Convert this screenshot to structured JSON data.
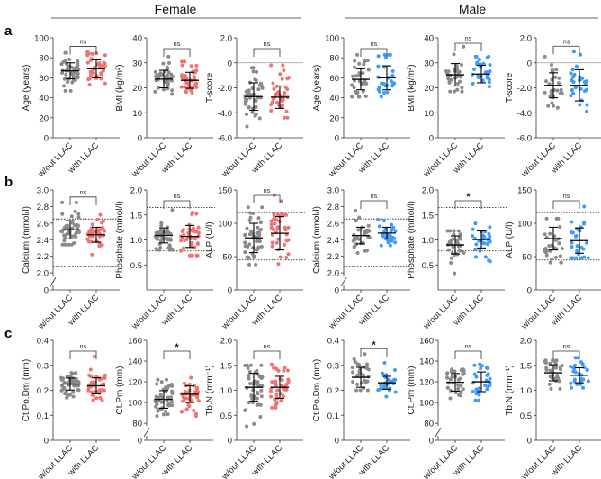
{
  "headers": {
    "female": "Female",
    "male": "Male"
  },
  "rows": [
    "a",
    "b",
    "c"
  ],
  "colors": {
    "without": "#8a8a8a",
    "female_with": "#f07272",
    "male_with": "#3d9bff"
  },
  "chart_data": [
    {
      "type": "scatter",
      "row": "a",
      "sex": "Female",
      "ylabel": "Age (years)",
      "ylim": [
        0,
        100
      ],
      "ticks": [
        0,
        20,
        40,
        60,
        80,
        100
      ],
      "sig": "ns",
      "categories": [
        "w/out LLAC",
        "with LLAC"
      ],
      "groups": [
        {
          "mean": 67,
          "sd": 8,
          "n": 45,
          "min": 47,
          "max": 85
        },
        {
          "mean": 69,
          "sd": 9,
          "n": 40,
          "min": 53,
          "max": 86
        }
      ]
    },
    {
      "type": "scatter",
      "row": "a",
      "sex": "Female",
      "ylabel": "BMI (kg/m²)",
      "ylim": [
        0,
        40
      ],
      "ticks": [
        0,
        10,
        20,
        30,
        40
      ],
      "sig": "ns",
      "categories": [
        "w/out LLAC",
        "with LLAC"
      ],
      "groups": [
        {
          "mean": 23.5,
          "sd": 3.5,
          "n": 45,
          "min": 17.5,
          "max": 32.5
        },
        {
          "mean": 23,
          "sd": 3.2,
          "n": 40,
          "min": 18,
          "max": 30.5
        }
      ]
    },
    {
      "type": "scatter",
      "row": "a",
      "sex": "Female",
      "ylabel": "T-score",
      "ylim": [
        -6,
        2
      ],
      "ticks": [
        -6,
        -4,
        -2,
        0,
        2
      ],
      "zero_line": 0,
      "sig": "ns",
      "categories": [
        "w/out LLAC",
        "with LLAC"
      ],
      "groups": [
        {
          "mean": -2.7,
          "sd": 1.1,
          "n": 45,
          "min": -5.1,
          "max": -0.4
        },
        {
          "mean": -2.75,
          "sd": 0.9,
          "n": 40,
          "min": -4.4,
          "max": -0.2
        }
      ]
    },
    {
      "type": "scatter",
      "row": "a",
      "sex": "Male",
      "ylabel": "Age (years)",
      "ylim": [
        0,
        100
      ],
      "ticks": [
        0,
        20,
        40,
        60,
        80,
        100
      ],
      "sig": "ns",
      "categories": [
        "w/out LLAC",
        "with LLAC"
      ],
      "groups": [
        {
          "mean": 58.5,
          "sd": 10.5,
          "n": 30,
          "min": 41,
          "max": 83
        },
        {
          "mean": 60,
          "sd": 12,
          "n": 28,
          "min": 41,
          "max": 83
        }
      ]
    },
    {
      "type": "scatter",
      "row": "a",
      "sex": "Male",
      "ylabel": "BMI (kg/m²)",
      "ylim": [
        0,
        40
      ],
      "ticks": [
        0,
        10,
        20,
        30,
        40
      ],
      "sig": "ns",
      "categories": [
        "w/out LLAC",
        "with LLAC"
      ],
      "groups": [
        {
          "mean": 25.2,
          "sd": 4.5,
          "n": 30,
          "min": 18.5,
          "max": 36.5
        },
        {
          "mean": 25.5,
          "sd": 3.5,
          "n": 28,
          "min": 20.5,
          "max": 32.5
        }
      ]
    },
    {
      "type": "scatter",
      "row": "a",
      "sex": "Male",
      "ylabel": "T-score",
      "ylim": [
        -6,
        2
      ],
      "ticks": [
        -6,
        -4,
        -2,
        0,
        2
      ],
      "zero_line": 0,
      "sig": "ns",
      "categories": [
        "w/out LLAC",
        "with LLAC"
      ],
      "groups": [
        {
          "mean": -1.8,
          "sd": 1.0,
          "n": 30,
          "min": -3.6,
          "max": 0.5
        },
        {
          "mean": -1.8,
          "sd": 1.25,
          "n": 28,
          "min": -3.9,
          "max": 0.9
        }
      ]
    },
    {
      "type": "scatter",
      "row": "b",
      "sex": "Female",
      "ylabel": "Calcium (mmol/l)",
      "ylim": [
        2.0,
        3.0
      ],
      "axis_break": true,
      "ticks": [
        0,
        2.0,
        2.2,
        2.4,
        2.6,
        2.8,
        3.0
      ],
      "ref_lines": [
        2.08,
        2.65
      ],
      "sig": "ns",
      "categories": [
        "w/out LLAC",
        "with LLAC"
      ],
      "groups": [
        {
          "mean": 2.52,
          "sd": 0.11,
          "n": 45,
          "min": 2.34,
          "max": 2.85
        },
        {
          "mean": 2.46,
          "sd": 0.09,
          "n": 40,
          "min": 2.22,
          "max": 2.7
        }
      ]
    },
    {
      "type": "scatter",
      "row": "b",
      "sex": "Female",
      "ylabel": "Phosphate  (mmol/l)",
      "ylim": [
        0,
        2.0
      ],
      "ticks": [
        0.5,
        1.0,
        1.5,
        2.0
      ],
      "ref_lines": [
        0.78,
        1.65
      ],
      "sig": "ns",
      "categories": [
        "w/out LLAC",
        "with LLAC"
      ],
      "groups": [
        {
          "mean": 1.09,
          "sd": 0.15,
          "n": 45,
          "min": 0.8,
          "max": 1.6
        },
        {
          "mean": 1.07,
          "sd": 0.22,
          "n": 40,
          "min": 0.69,
          "max": 1.55
        }
      ]
    },
    {
      "type": "scatter",
      "row": "b",
      "sex": "Female",
      "ylabel": "ALP (U/l)",
      "ylim": [
        0,
        150
      ],
      "ticks": [
        0,
        50,
        100,
        150
      ],
      "ref_lines": [
        45,
        116
      ],
      "sig": "ns",
      "categories": [
        "w/out LLAC",
        "with LLAC"
      ],
      "groups": [
        {
          "mean": 78,
          "sd": 22,
          "n": 45,
          "min": 38,
          "max": 124
        },
        {
          "mean": 85,
          "sd": 25,
          "n": 40,
          "min": 39,
          "max": 142
        }
      ]
    },
    {
      "type": "scatter",
      "row": "b",
      "sex": "Male",
      "ylabel": "Calcium (mmol/l)",
      "ylim": [
        2.0,
        3.0
      ],
      "axis_break": true,
      "ticks": [
        0,
        2.0,
        2.2,
        2.4,
        2.6,
        2.8,
        3.0
      ],
      "ref_lines": [
        2.08,
        2.65
      ],
      "sig": "ns",
      "categories": [
        "w/out LLAC",
        "with LLAC"
      ],
      "groups": [
        {
          "mean": 2.45,
          "sd": 0.1,
          "n": 30,
          "min": 2.24,
          "max": 2.75
        },
        {
          "mean": 2.48,
          "sd": 0.07,
          "n": 28,
          "min": 2.33,
          "max": 2.64
        }
      ]
    },
    {
      "type": "scatter",
      "row": "b",
      "sex": "Male",
      "ylabel": "Phosphate  (mmol/l)",
      "ylim": [
        0,
        2.0
      ],
      "ticks": [
        0.5,
        1.0,
        1.5,
        2.0
      ],
      "ref_lines": [
        0.78,
        1.65
      ],
      "sig": "*",
      "categories": [
        "w/out LLAC",
        "with LLAC"
      ],
      "groups": [
        {
          "mean": 0.9,
          "sd": 0.18,
          "n": 30,
          "min": 0.33,
          "max": 1.18
        },
        {
          "mean": 1.01,
          "sd": 0.17,
          "n": 28,
          "min": 0.57,
          "max": 1.33
        }
      ]
    },
    {
      "type": "scatter",
      "row": "b",
      "sex": "Male",
      "ylabel": "ALP (U/l)",
      "ylim": [
        0,
        150
      ],
      "ticks": [
        0,
        50,
        100,
        150
      ],
      "ref_lines": [
        45,
        116
      ],
      "sig": "ns",
      "categories": [
        "w/out LLAC",
        "with LLAC"
      ],
      "groups": [
        {
          "mean": 77,
          "sd": 17,
          "n": 30,
          "min": 41,
          "max": 107
        },
        {
          "mean": 74,
          "sd": 19,
          "n": 28,
          "min": 48,
          "max": 125
        }
      ]
    },
    {
      "type": "scatter",
      "row": "c",
      "sex": "Female",
      "ylabel": "Ct.Po.Dm (mm)",
      "ylim": [
        0,
        0.4
      ],
      "ticks": [
        0,
        0.1,
        0.2,
        0.3,
        0.4
      ],
      "sig": "ns",
      "categories": [
        "w/out LLAC",
        "with LLAC"
      ],
      "groups": [
        {
          "mean": 0.225,
          "sd": 0.024,
          "n": 45,
          "min": 0.17,
          "max": 0.27
        },
        {
          "mean": 0.218,
          "sd": 0.032,
          "n": 40,
          "min": 0.16,
          "max": 0.335
        }
      ]
    },
    {
      "type": "scatter",
      "row": "c",
      "sex": "Female",
      "ylabel": "Ct.Pm (mm)",
      "ylim": [
        80,
        160
      ],
      "axis_break": true,
      "ticks": [
        0,
        80,
        100,
        120,
        140,
        160
      ],
      "sig": "*",
      "categories": [
        "w/out LLAC",
        "with LLAC"
      ],
      "groups": [
        {
          "mean": 103,
          "sd": 8.5,
          "n": 45,
          "min": 87,
          "max": 122
        },
        {
          "mean": 108,
          "sd": 8,
          "n": 40,
          "min": 87,
          "max": 124
        }
      ]
    },
    {
      "type": "scatter",
      "row": "c",
      "sex": "Female",
      "ylabel": "Tb.N (mm⁻¹)",
      "ylim": [
        0,
        2.0
      ],
      "ticks": [
        0,
        0.5,
        1.0,
        1.5,
        2.0
      ],
      "sig": "ns",
      "categories": [
        "w/out LLAC",
        "with LLAC"
      ],
      "groups": [
        {
          "mean": 1.06,
          "sd": 0.28,
          "n": 45,
          "min": 0.28,
          "max": 1.5
        },
        {
          "mean": 1.06,
          "sd": 0.22,
          "n": 40,
          "min": 0.65,
          "max": 1.52
        }
      ]
    },
    {
      "type": "scatter",
      "row": "c",
      "sex": "Male",
      "ylabel": "Ct.Po.Dm (mm)",
      "ylim": [
        0,
        0.4
      ],
      "ticks": [
        0,
        0.1,
        0.2,
        0.3,
        0.4
      ],
      "sig": "*",
      "categories": [
        "w/out LLAC",
        "with LLAC"
      ],
      "groups": [
        {
          "mean": 0.252,
          "sd": 0.04,
          "n": 30,
          "min": 0.2,
          "max": 0.345
        },
        {
          "mean": 0.23,
          "sd": 0.026,
          "n": 28,
          "min": 0.175,
          "max": 0.31
        }
      ]
    },
    {
      "type": "scatter",
      "row": "c",
      "sex": "Male",
      "ylabel": "Ct.Pm (mm)",
      "ylim": [
        80,
        160
      ],
      "axis_break": true,
      "ticks": [
        0,
        80,
        100,
        120,
        140,
        160
      ],
      "sig": "ns",
      "categories": [
        "w/out LLAC",
        "with LLAC"
      ],
      "groups": [
        {
          "mean": 119.5,
          "sd": 8.5,
          "n": 30,
          "min": 104,
          "max": 132
        },
        {
          "mean": 120,
          "sd": 9.5,
          "n": 28,
          "min": 102,
          "max": 137
        }
      ]
    },
    {
      "type": "scatter",
      "row": "c",
      "sex": "Male",
      "ylabel": "Tb.N (mm⁻¹)",
      "ylim": [
        0,
        2.0
      ],
      "ticks": [
        0,
        0.5,
        1.0,
        1.5,
        2.0
      ],
      "sig": "ns",
      "categories": [
        "w/out LLAC",
        "with LLAC"
      ],
      "groups": [
        {
          "mean": 1.35,
          "sd": 0.16,
          "n": 30,
          "min": 1.03,
          "max": 1.6
        },
        {
          "mean": 1.3,
          "sd": 0.15,
          "n": 28,
          "min": 1.05,
          "max": 1.65
        }
      ]
    }
  ]
}
